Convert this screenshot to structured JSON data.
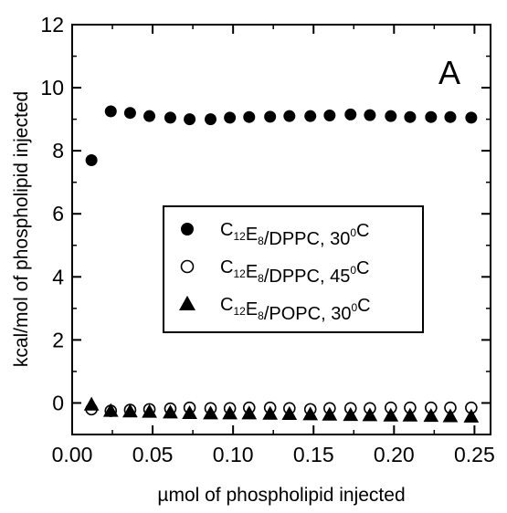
{
  "chart_data": {
    "type": "scatter",
    "xlabel": "µmol of phospholipid injected",
    "ylabel": "kcal/mol of phospholipid injected",
    "panel_label": "A",
    "xlim": [
      0.0,
      0.26
    ],
    "ylim": [
      -1,
      12
    ],
    "xticks": [
      0.0,
      0.05,
      0.1,
      0.15,
      0.2,
      0.25
    ],
    "xtick_labels": [
      "0.00",
      "0.05",
      "0.10",
      "0.15",
      "0.20",
      "0.25"
    ],
    "yticks": [
      0,
      2,
      4,
      6,
      8,
      10,
      12
    ],
    "ytick_labels": [
      "0",
      "2",
      "4",
      "6",
      "8",
      "10",
      "12"
    ],
    "grid": false,
    "legend_position": "center-right",
    "series": [
      {
        "label_parts": {
          "prefix": "C",
          "sub1": "12",
          "mid": "E",
          "sub2": "8",
          "rest": "/DPPC, 30",
          "sup": "0",
          "end": "C"
        },
        "marker": "filled-circle",
        "x": [
          0.012,
          0.024,
          0.036,
          0.048,
          0.061,
          0.073,
          0.086,
          0.098,
          0.11,
          0.123,
          0.135,
          0.148,
          0.16,
          0.173,
          0.185,
          0.198,
          0.21,
          0.223,
          0.235,
          0.248
        ],
        "y": [
          7.7,
          9.25,
          9.2,
          9.1,
          9.05,
          9.0,
          9.0,
          9.05,
          9.07,
          9.08,
          9.1,
          9.1,
          9.12,
          9.15,
          9.13,
          9.1,
          9.07,
          9.07,
          9.07,
          9.05
        ]
      },
      {
        "label_parts": {
          "prefix": "C",
          "sub1": "12",
          "mid": "E",
          "sub2": "8",
          "rest": "/DPPC, 45",
          "sup": "0",
          "end": "C"
        },
        "marker": "open-circle",
        "x": [
          0.012,
          0.024,
          0.036,
          0.048,
          0.061,
          0.073,
          0.086,
          0.098,
          0.11,
          0.123,
          0.135,
          0.148,
          0.16,
          0.173,
          0.185,
          0.198,
          0.21,
          0.223,
          0.235,
          0.248
        ],
        "y": [
          -0.2,
          -0.25,
          -0.22,
          -0.2,
          -0.18,
          -0.15,
          -0.17,
          -0.17,
          -0.15,
          -0.15,
          -0.17,
          -0.2,
          -0.17,
          -0.17,
          -0.17,
          -0.15,
          -0.15,
          -0.15,
          -0.15,
          -0.15
        ]
      },
      {
        "label_parts": {
          "prefix": "C",
          "sub1": "12",
          "mid": "E",
          "sub2": "8",
          "rest": "/POPC, 30",
          "sup": "0",
          "end": "C"
        },
        "marker": "filled-triangle",
        "x": [
          0.012,
          0.024,
          0.036,
          0.048,
          0.061,
          0.073,
          0.086,
          0.098,
          0.11,
          0.123,
          0.135,
          0.148,
          0.16,
          0.173,
          0.185,
          0.198,
          0.21,
          0.223,
          0.235,
          0.248
        ],
        "y": [
          -0.05,
          -0.25,
          -0.27,
          -0.28,
          -0.3,
          -0.32,
          -0.33,
          -0.33,
          -0.33,
          -0.34,
          -0.35,
          -0.36,
          -0.37,
          -0.38,
          -0.39,
          -0.4,
          -0.4,
          -0.41,
          -0.42,
          -0.43
        ]
      }
    ]
  }
}
